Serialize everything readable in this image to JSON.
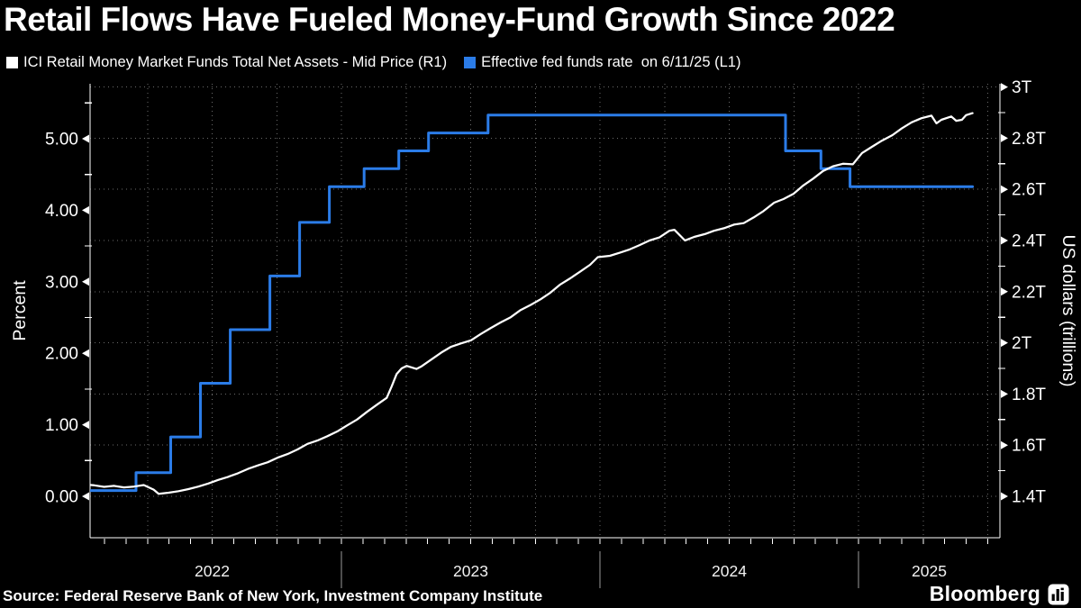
{
  "page": {
    "title": "Retail Flows Have Fueled Money-Fund Growth Since 2022"
  },
  "legend": {
    "items": [
      {
        "label": "ICI Retail Money Market Funds Total Net Assets - Mid Price (R1)",
        "color": "#ffffff"
      },
      {
        "label": "Effective fed funds rate  on 6/11/25 (L1)",
        "color": "#2b7ce8"
      }
    ]
  },
  "footer": {
    "source": "Source: Federal Reserve Bank of New York, Investment Company Institute",
    "brand": "Bloomberg",
    "brand_icon": "bar-chart-icon"
  },
  "colors": {
    "background": "#000000",
    "white_series": "#ffffff",
    "blue_series": "#2b7ce8",
    "grid": "#6b6b6b",
    "axis": "#ffffff",
    "year_separator": "#9a9a9a",
    "tick_text": "#ffffff"
  },
  "chart_data": {
    "type": "line",
    "title": "Retail Flows Have Fueled Money-Fund Growth Since 2022",
    "left_axis": {
      "title": "Percent",
      "tick_labels": [
        "0.00",
        "1.00",
        "2.00",
        "3.00",
        "4.00",
        "5.00"
      ],
      "tick_values": [
        0,
        1,
        2,
        3,
        4,
        5
      ],
      "minor_tick_values": [
        0.5,
        1.5,
        2.5,
        3.5,
        4.5,
        5.5
      ],
      "range": [
        -0.55,
        5.77
      ]
    },
    "right_axis": {
      "title": "US dollars (trillions)",
      "tick_labels": [
        "1.4T",
        "1.6T",
        "1.8T",
        "2T",
        "2.2T",
        "2.4T",
        "2.6T",
        "2.8T",
        "3T"
      ],
      "tick_values": [
        1.4,
        1.6,
        1.8,
        2.0,
        2.2,
        2.4,
        2.6,
        2.8,
        3.0
      ],
      "minor_tick_values": [
        1.5,
        1.7,
        1.9,
        2.1,
        2.3,
        2.5,
        2.7,
        2.9
      ],
      "range": [
        1.24,
        3.02
      ]
    },
    "x_axis": {
      "year_labels": [
        "2022",
        "2023",
        "2024",
        "2025"
      ],
      "start": "2022-01-01",
      "end": "2025-06-11",
      "grid": "quarterly",
      "minor_ticks": "monthly"
    },
    "grid_on": true,
    "legend_position": "top",
    "series": [
      {
        "name": "Effective fed funds rate  on 6/11/25 (L1)",
        "axis": "left",
        "color": "#2b7ce8",
        "width": 3,
        "style": "step",
        "points": [
          [
            "2022-01-01",
            0.08
          ],
          [
            "2022-03-17",
            0.33
          ],
          [
            "2022-05-05",
            0.83
          ],
          [
            "2022-06-16",
            1.58
          ],
          [
            "2022-07-28",
            2.33
          ],
          [
            "2022-09-22",
            3.08
          ],
          [
            "2022-11-03",
            3.83
          ],
          [
            "2022-12-15",
            4.33
          ],
          [
            "2023-02-02",
            4.58
          ],
          [
            "2023-03-23",
            4.83
          ],
          [
            "2023-05-04",
            5.08
          ],
          [
            "2023-07-27",
            5.33
          ],
          [
            "2024-09-19",
            4.83
          ],
          [
            "2024-11-08",
            4.58
          ],
          [
            "2024-12-19",
            4.33
          ],
          [
            "2025-06-11",
            4.33
          ]
        ]
      },
      {
        "name": "ICI Retail Money Market Funds Total Net Assets - Mid Price (R1)",
        "axis": "right",
        "color": "#ffffff",
        "width": 2.25,
        "style": "line",
        "points": [
          [
            "2022-01-03",
            1.447
          ],
          [
            "2022-01-17",
            1.443
          ],
          [
            "2022-01-31",
            1.437
          ],
          [
            "2022-02-14",
            1.441
          ],
          [
            "2022-02-28",
            1.435
          ],
          [
            "2022-03-14",
            1.438
          ],
          [
            "2022-03-28",
            1.444
          ],
          [
            "2022-04-11",
            1.426
          ],
          [
            "2022-04-18",
            1.41
          ],
          [
            "2022-05-02",
            1.414
          ],
          [
            "2022-05-16",
            1.42
          ],
          [
            "2022-05-30",
            1.428
          ],
          [
            "2022-06-13",
            1.438
          ],
          [
            "2022-06-27",
            1.45
          ],
          [
            "2022-07-11",
            1.464
          ],
          [
            "2022-07-25",
            1.476
          ],
          [
            "2022-08-08",
            1.49
          ],
          [
            "2022-08-22",
            1.507
          ],
          [
            "2022-09-06",
            1.522
          ],
          [
            "2022-09-19",
            1.533
          ],
          [
            "2022-10-03",
            1.551
          ],
          [
            "2022-10-17",
            1.565
          ],
          [
            "2022-10-31",
            1.583
          ],
          [
            "2022-11-14",
            1.605
          ],
          [
            "2022-11-28",
            1.618
          ],
          [
            "2022-12-12",
            1.635
          ],
          [
            "2022-12-27",
            1.655
          ],
          [
            "2023-01-09",
            1.677
          ],
          [
            "2023-01-23",
            1.7
          ],
          [
            "2023-02-06",
            1.73
          ],
          [
            "2023-02-21",
            1.76
          ],
          [
            "2023-03-06",
            1.785
          ],
          [
            "2023-03-13",
            1.83
          ],
          [
            "2023-03-20",
            1.878
          ],
          [
            "2023-03-27",
            1.9
          ],
          [
            "2023-04-03",
            1.91
          ],
          [
            "2023-04-17",
            1.898
          ],
          [
            "2023-04-24",
            1.908
          ],
          [
            "2023-05-08",
            1.935
          ],
          [
            "2023-05-22",
            1.962
          ],
          [
            "2023-06-05",
            1.985
          ],
          [
            "2023-06-19",
            1.998
          ],
          [
            "2023-07-03",
            2.01
          ],
          [
            "2023-07-17",
            2.035
          ],
          [
            "2023-07-31",
            2.058
          ],
          [
            "2023-08-14",
            2.08
          ],
          [
            "2023-08-28",
            2.1
          ],
          [
            "2023-09-11",
            2.128
          ],
          [
            "2023-09-25",
            2.148
          ],
          [
            "2023-10-09",
            2.17
          ],
          [
            "2023-10-23",
            2.196
          ],
          [
            "2023-11-06",
            2.228
          ],
          [
            "2023-11-20",
            2.252
          ],
          [
            "2023-12-04",
            2.278
          ],
          [
            "2023-12-18",
            2.305
          ],
          [
            "2023-12-29",
            2.335
          ],
          [
            "2024-01-15",
            2.34
          ],
          [
            "2024-01-29",
            2.352
          ],
          [
            "2024-02-12",
            2.365
          ],
          [
            "2024-02-26",
            2.382
          ],
          [
            "2024-03-11",
            2.4
          ],
          [
            "2024-03-25",
            2.412
          ],
          [
            "2024-04-08",
            2.438
          ],
          [
            "2024-04-15",
            2.442
          ],
          [
            "2024-04-30",
            2.4
          ],
          [
            "2024-05-13",
            2.414
          ],
          [
            "2024-05-28",
            2.425
          ],
          [
            "2024-06-10",
            2.438
          ],
          [
            "2024-06-24",
            2.448
          ],
          [
            "2024-07-08",
            2.462
          ],
          [
            "2024-07-22",
            2.468
          ],
          [
            "2024-08-05",
            2.49
          ],
          [
            "2024-08-19",
            2.515
          ],
          [
            "2024-09-03",
            2.548
          ],
          [
            "2024-09-16",
            2.562
          ],
          [
            "2024-09-30",
            2.582
          ],
          [
            "2024-10-14",
            2.615
          ],
          [
            "2024-10-28",
            2.642
          ],
          [
            "2024-11-11",
            2.672
          ],
          [
            "2024-11-25",
            2.69
          ],
          [
            "2024-12-09",
            2.7
          ],
          [
            "2024-12-23",
            2.698
          ],
          [
            "2025-01-06",
            2.742
          ],
          [
            "2025-01-21",
            2.768
          ],
          [
            "2025-02-03",
            2.79
          ],
          [
            "2025-02-18",
            2.812
          ],
          [
            "2025-03-03",
            2.838
          ],
          [
            "2025-03-17",
            2.862
          ],
          [
            "2025-03-31",
            2.878
          ],
          [
            "2025-04-14",
            2.888
          ],
          [
            "2025-04-21",
            2.858
          ],
          [
            "2025-04-28",
            2.872
          ],
          [
            "2025-05-12",
            2.885
          ],
          [
            "2025-05-19",
            2.868
          ],
          [
            "2025-05-27",
            2.872
          ],
          [
            "2025-06-02",
            2.89
          ],
          [
            "2025-06-11",
            2.898
          ]
        ]
      }
    ]
  }
}
